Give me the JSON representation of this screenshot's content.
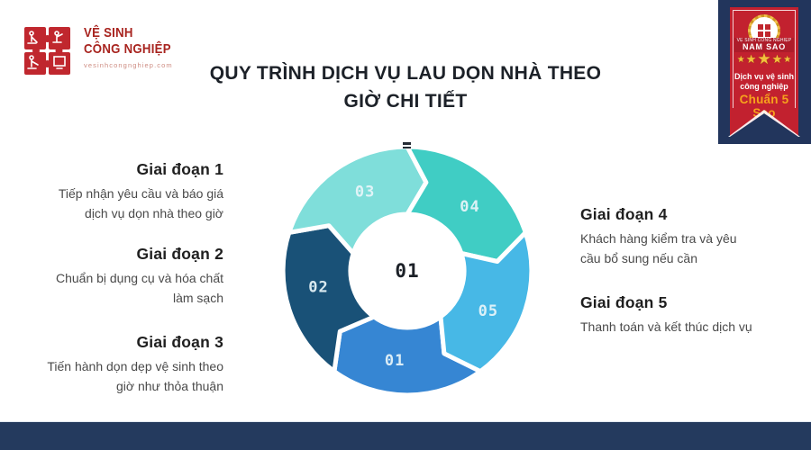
{
  "page": {
    "background": "#ffffff",
    "footer_bar_color": "#243A5E"
  },
  "logo": {
    "name_line1": "VỆ SINH",
    "name_line2": "CÔNG NGHIỆP",
    "website": "vesinhcongnghiep.com",
    "icon_color": "#C0272E",
    "text_color": "#A8241F",
    "website_color": "#CE8C82"
  },
  "header": {
    "title_line1": "QUY TRÌNH DỊCH VỤ LAU DỌN NHÀ THEO",
    "title_line2": "GIỜ CHI TIẾT",
    "title_color": "#1C2128"
  },
  "award_badge": {
    "background": "#22355C",
    "ribbon_color": "#C2212F",
    "brand_small_text": "VỆ SINH CÔNG NGHIỆP",
    "brand_name": "NAM SAO",
    "stars": [
      "★",
      "★",
      "★",
      "★",
      "★"
    ],
    "star_color": "#F2C13D",
    "description_line1": "Dịch vụ vệ sinh",
    "description_line2": "công nghiệp",
    "award_text": "Chuẩn 5 Sao",
    "award_text_color": "#F6A21C"
  },
  "stages_left": [
    {
      "heading": "Giai đoạn 1",
      "body": "Tiếp nhận yêu cầu và báo giá dịch vụ dọn nhà theo giờ"
    },
    {
      "heading": "Giai đoạn 2",
      "body": "Chuẩn bị dụng cụ và hóa chất làm sạch"
    },
    {
      "heading": "Giai đoạn 3",
      "body": "Tiến hành dọn dẹp vệ sinh theo giờ như thỏa thuận"
    }
  ],
  "stages_right": [
    {
      "heading": "Giai đoạn 4",
      "body": "Khách hàng kiểm tra và yêu cầu bổ sung nếu cần"
    },
    {
      "heading": "Giai đoạn 5",
      "body": "Thanh toán và kết thúc dịch vụ"
    }
  ],
  "diagram": {
    "type": "cycle",
    "direction": "clockwise",
    "center_label": "01",
    "segments": [
      {
        "label": "01",
        "color": "#3686D3",
        "start_angle": 54
      },
      {
        "label": "02",
        "color": "#195177",
        "start_angle": 126
      },
      {
        "label": "03",
        "color": "#7FDEDA",
        "start_angle": 198
      },
      {
        "label": "04",
        "color": "#40CDC4",
        "start_angle": 270
      },
      {
        "label": "05",
        "color": "#47B8E6",
        "start_angle": 342
      }
    ]
  }
}
